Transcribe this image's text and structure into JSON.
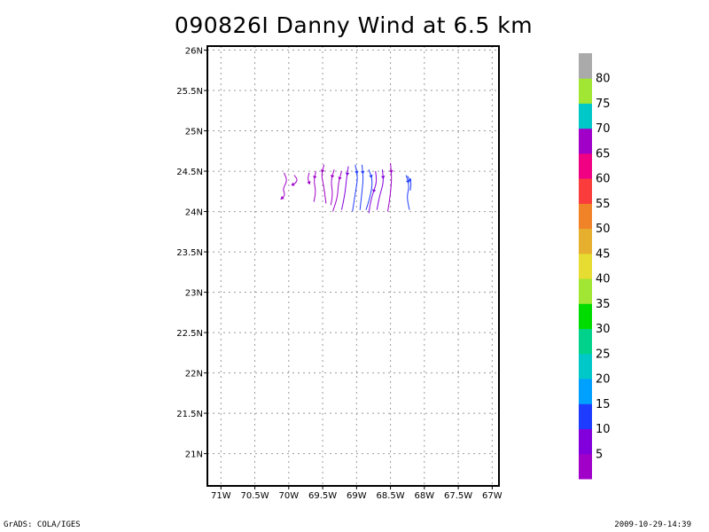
{
  "title": "090826I Danny Wind at 6.5 km",
  "footer": {
    "left": "GrADS: COLA/IGES",
    "right": "2009-10-29-14:39"
  },
  "chart_data": {
    "type": "streamline",
    "title": "090826I Danny Wind at 6.5 km",
    "xlim": [
      -71.2,
      -66.9
    ],
    "ylim": [
      20.6,
      26.05
    ],
    "grid": true,
    "x_ticks": [
      {
        "value": -71,
        "label": "71W"
      },
      {
        "value": -70.5,
        "label": "70.5W"
      },
      {
        "value": -70,
        "label": "70W"
      },
      {
        "value": -69.5,
        "label": "69.5W"
      },
      {
        "value": -69,
        "label": "69W"
      },
      {
        "value": -68.5,
        "label": "68.5W"
      },
      {
        "value": -68,
        "label": "68W"
      },
      {
        "value": -67.5,
        "label": "67.5W"
      },
      {
        "value": -67,
        "label": "67W"
      }
    ],
    "y_ticks": [
      {
        "value": 21,
        "label": "21N"
      },
      {
        "value": 21.5,
        "label": "21.5N"
      },
      {
        "value": 22,
        "label": "22N"
      },
      {
        "value": 22.5,
        "label": "22.5N"
      },
      {
        "value": 23,
        "label": "23N"
      },
      {
        "value": 23.5,
        "label": "23.5N"
      },
      {
        "value": 24,
        "label": "24N"
      },
      {
        "value": 24.5,
        "label": "24.5N"
      },
      {
        "value": 25,
        "label": "25N"
      },
      {
        "value": 25.5,
        "label": "25.5N"
      },
      {
        "value": 26,
        "label": "26N"
      }
    ],
    "colorbar": {
      "colors": [
        "#a000c8",
        "#8200dc",
        "#1e3cff",
        "#00a0ff",
        "#00c8c8",
        "#00d28c",
        "#00dc00",
        "#a0e632",
        "#e6dc32",
        "#e6af2d",
        "#f08228",
        "#fa3c3c",
        "#f00082",
        "#a000c8",
        "#00c8c8",
        "#a0e632",
        "#aaaaaa"
      ],
      "labels": [
        "5",
        "10",
        "15",
        "20",
        "25",
        "30",
        "35",
        "40",
        "45",
        "50",
        "55",
        "60",
        "65",
        "70",
        "75",
        "80"
      ]
    },
    "streamlines": [
      {
        "color": "#a000c8",
        "points": [
          [
            -70.07,
            24.48
          ],
          [
            -70.02,
            24.38
          ],
          [
            -70.09,
            24.28
          ],
          [
            -70.05,
            24.2
          ],
          [
            -70.12,
            24.15
          ]
        ],
        "arrow": 4
      },
      {
        "color": "#a000c8",
        "points": [
          [
            -69.92,
            24.45
          ],
          [
            -69.87,
            24.4
          ],
          [
            -69.9,
            24.35
          ],
          [
            -69.95,
            24.33
          ]
        ],
        "arrow": 3
      },
      {
        "color": "#a000c8",
        "points": [
          [
            -69.7,
            24.48
          ],
          [
            -69.72,
            24.4
          ],
          [
            -69.69,
            24.34
          ]
        ],
        "arrow": 2
      },
      {
        "color": "#a000c8",
        "points": [
          [
            -69.6,
            24.5
          ],
          [
            -69.63,
            24.38
          ],
          [
            -69.6,
            24.25
          ],
          [
            -69.63,
            24.12
          ]
        ],
        "arrow": 1
      },
      {
        "color": "#a000c8",
        "points": [
          [
            -69.48,
            24.58
          ],
          [
            -69.52,
            24.45
          ],
          [
            -69.48,
            24.3
          ],
          [
            -69.45,
            24.1
          ]
        ],
        "arrow": 1
      },
      {
        "color": "#a000c8",
        "points": [
          [
            -69.33,
            24.52
          ],
          [
            -69.38,
            24.38
          ],
          [
            -69.35,
            24.22
          ],
          [
            -69.38,
            24.08
          ]
        ],
        "arrow": 1
      },
      {
        "color": "#a000c8",
        "points": [
          [
            -69.22,
            24.5
          ],
          [
            -69.27,
            24.35
          ],
          [
            -69.28,
            24.18
          ],
          [
            -69.35,
            24.0
          ]
        ],
        "arrow": 1
      },
      {
        "color": "#8200dc",
        "points": [
          [
            -69.12,
            24.56
          ],
          [
            -69.15,
            24.4
          ],
          [
            -69.17,
            24.22
          ],
          [
            -69.22,
            24.02
          ]
        ],
        "arrow": 1
      },
      {
        "color": "#1e3cff",
        "points": [
          [
            -69.02,
            24.58
          ],
          [
            -68.98,
            24.42
          ],
          [
            -69.02,
            24.22
          ],
          [
            -69.06,
            24.0
          ]
        ],
        "arrow": 1
      },
      {
        "color": "#1e3cff",
        "points": [
          [
            -68.92,
            24.58
          ],
          [
            -68.9,
            24.42
          ],
          [
            -68.92,
            24.24
          ],
          [
            -68.95,
            24.02
          ]
        ],
        "arrow": 1
      },
      {
        "color": "#1e3cff",
        "points": [
          [
            -68.82,
            24.52
          ],
          [
            -68.76,
            24.38
          ],
          [
            -68.8,
            24.18
          ],
          [
            -68.86,
            24.02
          ]
        ],
        "arrow": 1
      },
      {
        "color": "#8200dc",
        "points": [
          [
            -68.72,
            24.5
          ],
          [
            -68.7,
            24.36
          ],
          [
            -68.78,
            24.18
          ],
          [
            -68.82,
            23.98
          ]
        ],
        "arrow": 2
      },
      {
        "color": "#8200dc",
        "points": [
          [
            -68.62,
            24.52
          ],
          [
            -68.6,
            24.36
          ],
          [
            -68.66,
            24.2
          ],
          [
            -68.7,
            24.02
          ]
        ],
        "arrow": 1
      },
      {
        "color": "#a000c8",
        "points": [
          [
            -68.5,
            24.6
          ],
          [
            -68.48,
            24.42
          ],
          [
            -68.5,
            24.22
          ],
          [
            -68.54,
            24.0
          ]
        ],
        "arrow": 1
      },
      {
        "color": "#1e3cff",
        "points": [
          [
            -68.27,
            24.45
          ],
          [
            -68.22,
            24.32
          ],
          [
            -68.26,
            24.18
          ],
          [
            -68.22,
            24.02
          ]
        ],
        "arrow": 1
      },
      {
        "color": "#1e3cff",
        "points": [
          [
            -68.25,
            24.44
          ],
          [
            -68.19,
            24.36
          ],
          [
            -68.21,
            24.26
          ]
        ],
        "arrow": 1
      }
    ]
  }
}
